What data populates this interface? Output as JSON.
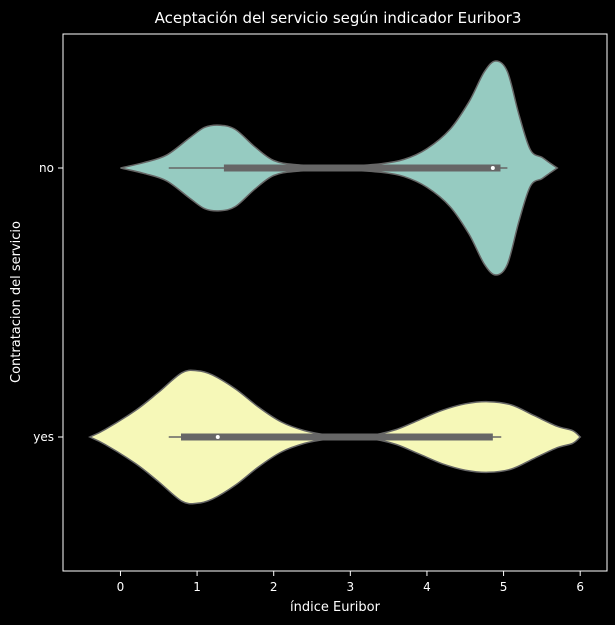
{
  "chart_data": {
    "type": "violin",
    "orientation": "horizontal",
    "title": "Aceptación del servicio según indicador Euribor3",
    "xlabel": "índice Euribor",
    "ylabel": "Contratacion del servicio",
    "xlim": [
      -0.75,
      6.35
    ],
    "xticks": [
      "0",
      "1",
      "2",
      "3",
      "4",
      "5",
      "6"
    ],
    "xtick_values": [
      0,
      1,
      2,
      3,
      4,
      5,
      6
    ],
    "grid": false,
    "background": "#000000",
    "outline_color": "#666666",
    "box_color": "#666666",
    "series": [
      {
        "category": "no",
        "color": "#96cbc1",
        "quartiles": {
          "q1": 1.35,
          "median": 4.86,
          "q3": 4.96
        },
        "whiskers": [
          0.63,
          5.05
        ],
        "density_extent": [
          0.0,
          5.7
        ],
        "density": [
          [
            0.0,
            0.0
          ],
          [
            0.3,
            0.05
          ],
          [
            0.6,
            0.12
          ],
          [
            0.9,
            0.28
          ],
          [
            1.1,
            0.38
          ],
          [
            1.3,
            0.4
          ],
          [
            1.5,
            0.36
          ],
          [
            1.75,
            0.2
          ],
          [
            2.0,
            0.07
          ],
          [
            2.3,
            0.03
          ],
          [
            2.7,
            0.02
          ],
          [
            3.0,
            0.02
          ],
          [
            3.4,
            0.04
          ],
          [
            3.7,
            0.08
          ],
          [
            4.0,
            0.18
          ],
          [
            4.3,
            0.36
          ],
          [
            4.55,
            0.62
          ],
          [
            4.75,
            0.9
          ],
          [
            4.9,
            1.0
          ],
          [
            5.05,
            0.9
          ],
          [
            5.2,
            0.5
          ],
          [
            5.35,
            0.17
          ],
          [
            5.5,
            0.1
          ],
          [
            5.6,
            0.05
          ],
          [
            5.7,
            0.0
          ]
        ]
      },
      {
        "category": "yes",
        "color": "#f6f8b8",
        "quartiles": {
          "q1": 0.79,
          "median": 1.27,
          "q3": 4.86
        },
        "whiskers": [
          0.63,
          4.97
        ],
        "density_extent": [
          -0.4,
          6.0
        ],
        "density": [
          [
            -0.4,
            0.0
          ],
          [
            -0.2,
            0.07
          ],
          [
            0.2,
            0.25
          ],
          [
            0.5,
            0.42
          ],
          [
            0.8,
            0.6
          ],
          [
            1.0,
            0.62
          ],
          [
            1.2,
            0.58
          ],
          [
            1.5,
            0.45
          ],
          [
            1.8,
            0.28
          ],
          [
            2.1,
            0.14
          ],
          [
            2.4,
            0.06
          ],
          [
            2.7,
            0.02
          ],
          [
            3.0,
            0.01
          ],
          [
            3.3,
            0.02
          ],
          [
            3.6,
            0.07
          ],
          [
            3.9,
            0.16
          ],
          [
            4.2,
            0.25
          ],
          [
            4.5,
            0.31
          ],
          [
            4.8,
            0.33
          ],
          [
            5.1,
            0.3
          ],
          [
            5.4,
            0.2
          ],
          [
            5.7,
            0.1
          ],
          [
            5.9,
            0.06
          ],
          [
            6.0,
            0.0
          ]
        ]
      }
    ]
  }
}
